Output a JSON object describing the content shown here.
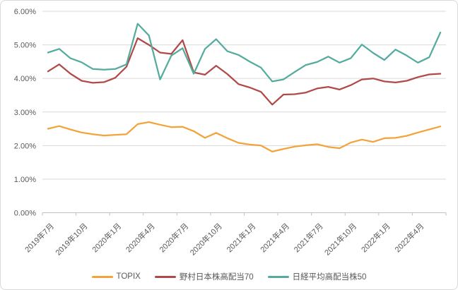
{
  "chart": {
    "background_color": "#FFFFFF",
    "frame_border_color": "#D9D9D9",
    "gridline_color": "#D9D9D9",
    "axis_line_color": "#BFBFBF",
    "axis_text_color": "#595959"
  },
  "chart_data": {
    "type": "line",
    "title": "",
    "xlabel": "",
    "ylabel": "",
    "y_min": 0,
    "y_max": 6,
    "y_step": 1,
    "y_tick_labels": [
      "0.00%",
      "1.00%",
      "2.00%",
      "3.00%",
      "4.00%",
      "5.00%",
      "6.00%"
    ],
    "grid": "horizontal",
    "legend_position": "bottom-center",
    "x": [
      "2019年7月",
      "2019年8月",
      "2019年9月",
      "2019年10月",
      "2019年11月",
      "2019年12月",
      "2020年1月",
      "2020年2月",
      "2020年3月",
      "2020年4月",
      "2020年5月",
      "2020年6月",
      "2020年7月",
      "2020年8月",
      "2020年9月",
      "2020年10月",
      "2020年11月",
      "2020年12月",
      "2021年1月",
      "2021年2月",
      "2021年3月",
      "2021年4月",
      "2021年5月",
      "2021年6月",
      "2021年7月",
      "2021年8月",
      "2021年9月",
      "2021年10月",
      "2021年11月",
      "2021年12月",
      "2022年1月",
      "2022年2月",
      "2022年3月",
      "2022年4月",
      "2022年5月",
      "2022年6月"
    ],
    "x_tick_labels": [
      "2019年7月",
      "2019年10月",
      "2020年1月",
      "2020年4月",
      "2020年7月",
      "2020年10月",
      "2021年1月",
      "2021年4月",
      "2021年7月",
      "2021年10月",
      "2022年1月",
      "2022年4月"
    ],
    "x_tick_label_rotation_deg": -45,
    "series": [
      {
        "name": "TOPIX",
        "color": "#F2A43A",
        "values": [
          2.5,
          2.58,
          2.48,
          2.39,
          2.34,
          2.3,
          2.32,
          2.34,
          2.64,
          2.7,
          2.62,
          2.55,
          2.56,
          2.43,
          2.23,
          2.38,
          2.22,
          2.08,
          2.03,
          2.0,
          1.82,
          1.9,
          1.97,
          2.01,
          2.04,
          1.96,
          1.92,
          2.09,
          2.18,
          2.11,
          2.22,
          2.23,
          2.29,
          2.39,
          2.48,
          2.57
        ]
      },
      {
        "name": "野村日本株高配当70",
        "color": "#B04A48",
        "values": [
          4.21,
          4.42,
          4.14,
          3.93,
          3.87,
          3.89,
          4.02,
          4.35,
          5.2,
          5.0,
          4.77,
          4.73,
          5.14,
          4.18,
          4.11,
          4.38,
          4.13,
          3.83,
          3.73,
          3.6,
          3.22,
          3.52,
          3.53,
          3.58,
          3.7,
          3.75,
          3.67,
          3.8,
          3.97,
          4.0,
          3.91,
          3.88,
          3.93,
          4.04,
          4.12,
          4.14
        ]
      },
      {
        "name": "日経平均高配当株50",
        "color": "#55AC9E",
        "values": [
          4.77,
          4.88,
          4.6,
          4.48,
          4.28,
          4.26,
          4.28,
          4.42,
          5.63,
          5.28,
          3.97,
          4.68,
          4.9,
          4.14,
          4.88,
          5.17,
          4.81,
          4.7,
          4.5,
          4.32,
          3.91,
          3.97,
          4.19,
          4.4,
          4.49,
          4.65,
          4.47,
          4.6,
          5.01,
          4.76,
          4.55,
          4.86,
          4.68,
          4.47,
          4.63,
          5.37
        ]
      }
    ]
  }
}
